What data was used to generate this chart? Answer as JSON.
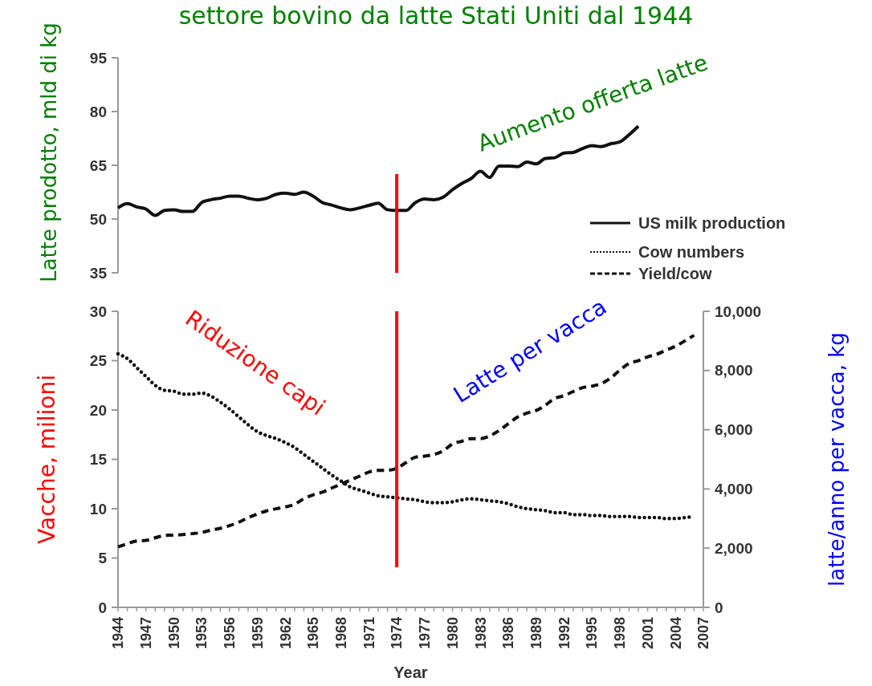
{
  "chart_data": [
    {
      "type": "line",
      "title": "settore bovino da latte Stati Uniti dal 1944",
      "ylabel": "Latte prodotto, mld di kg",
      "x": [
        1944,
        1945,
        1946,
        1947,
        1948,
        1949,
        1950,
        1951,
        1952,
        1953,
        1954,
        1955,
        1956,
        1957,
        1958,
        1959,
        1960,
        1961,
        1962,
        1963,
        1964,
        1965,
        1966,
        1967,
        1968,
        1969,
        1970,
        1971,
        1972,
        1973,
        1974,
        1975,
        1976,
        1977,
        1978,
        1979,
        1980,
        1981,
        1982,
        1983,
        1984,
        1985,
        1986,
        1987,
        1988,
        1989,
        1990,
        1991,
        1992,
        1993,
        1994,
        1995,
        1996,
        1997,
        1998,
        1999,
        2000
      ],
      "series": [
        {
          "name": "US milk production",
          "color": "#111111",
          "line_style": "solid",
          "values": [
            53.1,
            54.3,
            53.4,
            52.8,
            51.0,
            52.4,
            52.6,
            52.1,
            52.1,
            54.6,
            55.4,
            55.8,
            56.4,
            56.4,
            55.8,
            55.4,
            55.8,
            56.9,
            57.2,
            56.9,
            57.5,
            56.4,
            54.6,
            53.9,
            53.1,
            52.6,
            53.1,
            53.8,
            54.4,
            52.6,
            52.4,
            52.4,
            54.6,
            55.6,
            55.4,
            56.1,
            58.2,
            59.9,
            61.3,
            63.3,
            61.6,
            64.8,
            64.8,
            64.6,
            65.9,
            65.4,
            66.9,
            67.1,
            68.4,
            68.6,
            69.7,
            70.5,
            70.2,
            71.0,
            71.5,
            73.5,
            75.9
          ]
        }
      ],
      "xlim": [
        1944,
        2007
      ],
      "ylim": [
        35,
        95
      ],
      "yticks": [
        35,
        50,
        65,
        80,
        95
      ],
      "tick_labels": "y",
      "legend": "bottom right",
      "ref_lines": [
        {
          "axis": "x",
          "value": 1974,
          "color": "#ff0000"
        }
      ],
      "annotations": [
        "Aumento offerta latte"
      ]
    },
    {
      "type": "line",
      "xlabel": "Year",
      "ylabel": "Vacche, milioni",
      "y2label": "latte/anno per vacca, kg",
      "x": [
        1944,
        1945,
        1946,
        1947,
        1948,
        1949,
        1950,
        1951,
        1952,
        1953,
        1954,
        1955,
        1956,
        1957,
        1958,
        1959,
        1960,
        1961,
        1962,
        1963,
        1964,
        1965,
        1966,
        1967,
        1968,
        1969,
        1970,
        1971,
        1972,
        1973,
        1974,
        1975,
        1976,
        1977,
        1978,
        1979,
        1980,
        1981,
        1982,
        1983,
        1984,
        1985,
        1986,
        1987,
        1988,
        1989,
        1990,
        1991,
        1992,
        1993,
        1994,
        1995,
        1996,
        1997,
        1998,
        1999,
        2000,
        2001,
        2002,
        2003,
        2004,
        2005,
        2006
      ],
      "series": [
        {
          "name": "Cow numbers",
          "color": "#111111",
          "line_style": "dotted",
          "values": [
            25.7,
            25.2,
            24.3,
            23.4,
            22.5,
            22.0,
            21.9,
            21.6,
            21.6,
            21.7,
            21.4,
            20.8,
            20.1,
            19.3,
            18.5,
            17.8,
            17.4,
            17.1,
            16.7,
            16.2,
            15.5,
            14.8,
            14.1,
            13.4,
            12.8,
            12.2,
            11.9,
            11.6,
            11.3,
            11.2,
            11.1,
            11.0,
            10.9,
            10.7,
            10.6,
            10.6,
            10.7,
            10.9,
            11.0,
            10.9,
            10.8,
            10.7,
            10.5,
            10.2,
            10.0,
            9.9,
            9.8,
            9.6,
            9.6,
            9.4,
            9.4,
            9.3,
            9.3,
            9.2,
            9.2,
            9.2,
            9.1,
            9.1,
            9.1,
            9.0,
            9.0,
            9.1,
            9.2
          ]
        },
        {
          "name": "Yield/cow",
          "color": "#111111",
          "line_style": "dashed",
          "axis": "y2",
          "values": [
            2040,
            2150,
            2240,
            2260,
            2350,
            2430,
            2440,
            2460,
            2490,
            2530,
            2610,
            2670,
            2760,
            2880,
            3030,
            3150,
            3260,
            3330,
            3390,
            3480,
            3670,
            3800,
            3890,
            4030,
            4160,
            4300,
            4430,
            4570,
            4630,
            4630,
            4700,
            4890,
            5070,
            5110,
            5160,
            5290,
            5520,
            5610,
            5700,
            5700,
            5790,
            5970,
            6200,
            6430,
            6560,
            6650,
            6830,
            7060,
            7150,
            7290,
            7420,
            7470,
            7560,
            7740,
            8010,
            8240,
            8330,
            8460,
            8550,
            8690,
            8820,
            9000,
            9190
          ]
        }
      ],
      "xlim": [
        1944,
        2007
      ],
      "xticks": [
        1944,
        {
          "value": 1945,
          "label": null
        },
        {
          "value": 1946,
          "label": null
        },
        1947,
        {
          "value": 1948,
          "label": null
        },
        {
          "value": 1949,
          "label": null
        },
        1950,
        {
          "value": 1951,
          "label": null
        },
        {
          "value": 1952,
          "label": null
        },
        1953,
        {
          "value": 1954,
          "label": null
        },
        {
          "value": 1955,
          "label": null
        },
        1956,
        {
          "value": 1957,
          "label": null
        },
        {
          "value": 1958,
          "label": null
        },
        1959,
        {
          "value": 1960,
          "label": null
        },
        {
          "value": 1961,
          "label": null
        },
        1962,
        {
          "value": 1963,
          "label": null
        },
        {
          "value": 1964,
          "label": null
        },
        1965,
        {
          "value": 1966,
          "label": null
        },
        {
          "value": 1967,
          "label": null
        },
        1968,
        {
          "value": 1969,
          "label": null
        },
        {
          "value": 1970,
          "label": null
        },
        1971,
        {
          "value": 1972,
          "label": null
        },
        {
          "value": 1973,
          "label": null
        },
        1974,
        {
          "value": 1975,
          "label": null
        },
        {
          "value": 1976,
          "label": null
        },
        1977,
        {
          "value": 1978,
          "label": null
        },
        {
          "value": 1979,
          "label": null
        },
        1980,
        {
          "value": 1981,
          "label": null
        },
        {
          "value": 1982,
          "label": null
        },
        1983,
        {
          "value": 1984,
          "label": null
        },
        {
          "value": 1985,
          "label": null
        },
        1986,
        {
          "value": 1987,
          "label": null
        },
        {
          "value": 1988,
          "label": null
        },
        1989,
        {
          "value": 1990,
          "label": null
        },
        {
          "value": 1991,
          "label": null
        },
        1992,
        {
          "value": 1993,
          "label": null
        },
        {
          "value": 1994,
          "label": null
        },
        1995,
        {
          "value": 1996,
          "label": null
        },
        {
          "value": 1997,
          "label": null
        },
        1998,
        {
          "value": 1999,
          "label": null
        },
        {
          "value": 2000,
          "label": null
        },
        2001,
        {
          "value": 2002,
          "label": null
        },
        {
          "value": 2003,
          "label": null
        },
        2004,
        {
          "value": 2005,
          "label": null
        },
        {
          "value": 2006,
          "label": null
        },
        2007
      ],
      "ylim": [
        0,
        30
      ],
      "yticks": [
        0,
        5,
        10,
        15,
        20,
        25,
        30
      ],
      "y2lim": [
        0,
        10000
      ],
      "y2ticks": [
        0,
        {
          "value": 2000,
          "label": "2,000"
        },
        {
          "value": 4000,
          "label": "4,000"
        },
        {
          "value": 6000,
          "label": "6,000"
        },
        {
          "value": 8000,
          "label": "8,000"
        },
        {
          "value": 10000,
          "label": "10,000"
        }
      ],
      "legend": "top right",
      "ref_lines": [
        {
          "axis": "x",
          "value": 1974,
          "color": "#ff0000"
        }
      ],
      "annotations": [
        "Riduzione capi",
        "Latte per vacca"
      ]
    }
  ]
}
